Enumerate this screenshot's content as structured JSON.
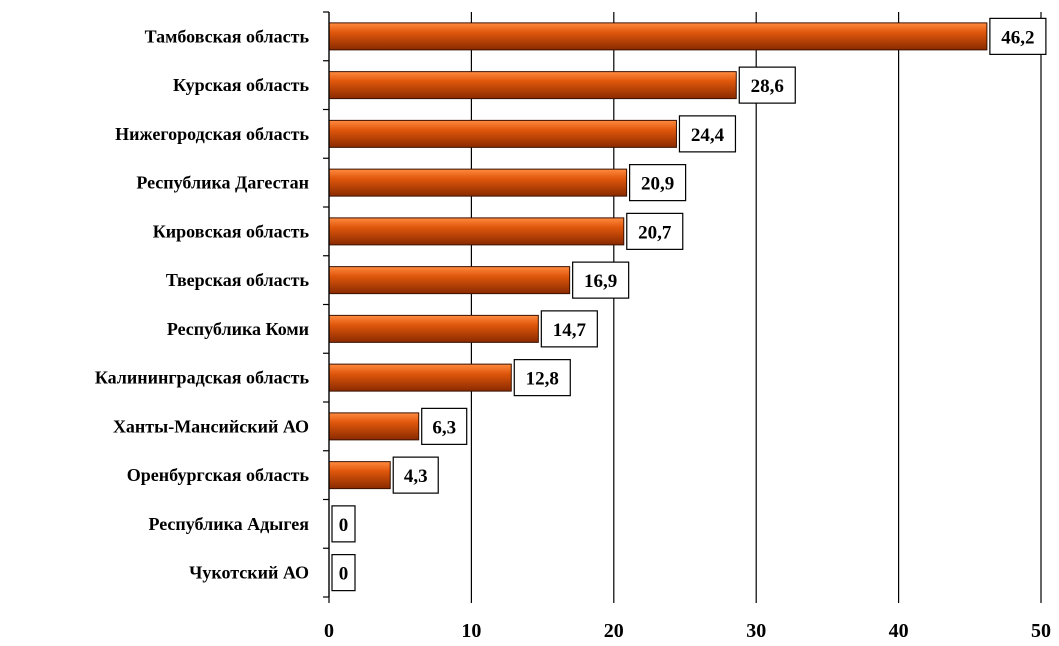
{
  "chart_data": {
    "type": "bar",
    "orientation": "horizontal",
    "title": "",
    "xlabel": "",
    "ylabel": "",
    "categories": [
      "Тамбовская область",
      "Курская область",
      "Нижегородская область",
      "Республика Дагестан",
      "Кировская область",
      "Тверская область",
      "Республика Коми",
      "Калининградская область",
      "Ханты-Мансийский АО",
      "Оренбургская область",
      "Республика Адыгея",
      "Чукотский АО"
    ],
    "values": [
      46.2,
      28.6,
      24.4,
      20.9,
      20.7,
      16.9,
      14.7,
      12.8,
      6.3,
      4.3,
      0,
      0
    ],
    "data_labels": [
      "46,2",
      "28,6",
      "24,4",
      "20,9",
      "20,7",
      "16,9",
      "14,7",
      "12,8",
      "6,3",
      "4,3",
      "0",
      "0"
    ],
    "xlim": [
      0,
      50
    ],
    "xticks": [
      0,
      10,
      20,
      30,
      40,
      50
    ],
    "xtick_labels": [
      "0",
      "10",
      "20",
      "30",
      "40",
      "50"
    ],
    "grid": "vertical",
    "legend": "none",
    "colors": {
      "bar_light": "#ff8c40",
      "bar_mid": "#e0570c",
      "bar_dark": "#8a2a00",
      "bar_edge": "#3a1200",
      "gridline": "#000000",
      "axis": "#000000",
      "label_box_border": "#000000",
      "label_box_fill": "#ffffff"
    }
  }
}
